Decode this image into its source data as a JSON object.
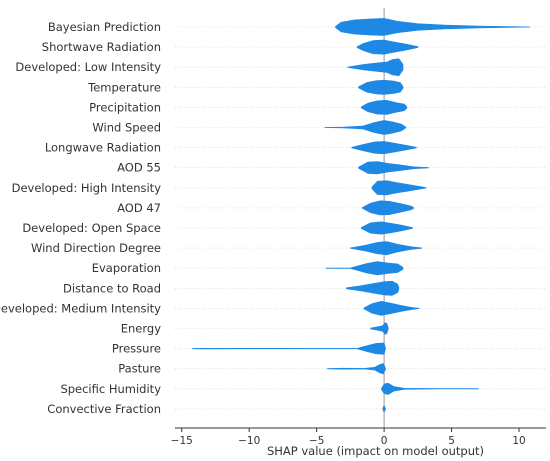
{
  "chart_data": {
    "type": "violin",
    "xlabel": "SHAP value (impact on model output)",
    "ylabel": "",
    "xlim": [
      -15.5,
      12
    ],
    "xticks": [
      -15,
      -10,
      -5,
      0,
      5,
      10
    ],
    "xtick_labels": [
      "−15",
      "−10",
      "−5",
      "0",
      "5",
      "10"
    ],
    "grid": false,
    "color": "#1e88e5",
    "features": [
      {
        "name": "Bayesian Prediction",
        "min": -3.6,
        "max": 10.8,
        "profile": [
          [
            -3.6,
            0.05
          ],
          [
            -3.2,
            0.5
          ],
          [
            -2.2,
            0.75
          ],
          [
            -1,
            0.85
          ],
          [
            0,
            0.9
          ],
          [
            1,
            0.6
          ],
          [
            2.5,
            0.35
          ],
          [
            4.5,
            0.2
          ],
          [
            7,
            0.1
          ],
          [
            9,
            0.05
          ],
          [
            10.8,
            0.01
          ]
        ]
      },
      {
        "name": "Shortwave Radiation",
        "min": -2.0,
        "max": 2.5,
        "profile": [
          [
            -2,
            0.05
          ],
          [
            -1.5,
            0.4
          ],
          [
            -0.8,
            0.7
          ],
          [
            0,
            0.75
          ],
          [
            0.7,
            0.55
          ],
          [
            1.5,
            0.35
          ],
          [
            2.5,
            0.05
          ]
        ]
      },
      {
        "name": "Developed: Low Intensity",
        "min": -2.7,
        "max": 1.4,
        "profile": [
          [
            -2.7,
            0.02
          ],
          [
            -1.5,
            0.3
          ],
          [
            -0.5,
            0.45
          ],
          [
            0.2,
            0.55
          ],
          [
            0.6,
            0.8
          ],
          [
            1.1,
            0.9
          ],
          [
            1.4,
            0.3
          ]
        ]
      },
      {
        "name": "Temperature",
        "min": -1.9,
        "max": 1.4,
        "profile": [
          [
            -1.9,
            0.05
          ],
          [
            -1.3,
            0.5
          ],
          [
            -0.6,
            0.7
          ],
          [
            0,
            0.75
          ],
          [
            0.7,
            0.65
          ],
          [
            1.2,
            0.5
          ],
          [
            1.4,
            0.1
          ]
        ]
      },
      {
        "name": "Precipitation",
        "min": -1.7,
        "max": 1.7,
        "profile": [
          [
            -1.7,
            0.05
          ],
          [
            -1.2,
            0.45
          ],
          [
            -0.5,
            0.7
          ],
          [
            0.2,
            0.75
          ],
          [
            0.9,
            0.5
          ],
          [
            1.5,
            0.35
          ],
          [
            1.7,
            0.05
          ]
        ]
      },
      {
        "name": "Wind Speed",
        "min": -4.4,
        "max": 1.6,
        "profile": [
          [
            -4.4,
            0.01
          ],
          [
            -3,
            0.05
          ],
          [
            -1.6,
            0.15
          ],
          [
            -0.8,
            0.5
          ],
          [
            0,
            0.75
          ],
          [
            0.6,
            0.6
          ],
          [
            1.3,
            0.35
          ],
          [
            1.6,
            0.05
          ]
        ]
      },
      {
        "name": "Longwave Radiation",
        "min": -2.4,
        "max": 2.4,
        "profile": [
          [
            -2.4,
            0.03
          ],
          [
            -1.5,
            0.35
          ],
          [
            -0.7,
            0.6
          ],
          [
            0,
            0.65
          ],
          [
            0.8,
            0.45
          ],
          [
            1.8,
            0.2
          ],
          [
            2.4,
            0.03
          ]
        ]
      },
      {
        "name": "AOD 55",
        "min": -1.9,
        "max": 3.3,
        "profile": [
          [
            -1.9,
            0.05
          ],
          [
            -1.2,
            0.6
          ],
          [
            -0.5,
            0.65
          ],
          [
            0.3,
            0.45
          ],
          [
            1.2,
            0.3
          ],
          [
            2.2,
            0.1
          ],
          [
            3.3,
            0.02
          ]
        ]
      },
      {
        "name": "Developed: High Intensity",
        "min": -0.9,
        "max": 3.1,
        "profile": [
          [
            -0.9,
            0.1
          ],
          [
            -0.5,
            0.7
          ],
          [
            0.2,
            0.75
          ],
          [
            0.9,
            0.55
          ],
          [
            1.8,
            0.35
          ],
          [
            2.6,
            0.15
          ],
          [
            3.1,
            0.03
          ]
        ]
      },
      {
        "name": "AOD 47",
        "min": -1.6,
        "max": 2.2,
        "profile": [
          [
            -1.6,
            0.05
          ],
          [
            -1,
            0.5
          ],
          [
            -0.3,
            0.75
          ],
          [
            0.4,
            0.7
          ],
          [
            1.2,
            0.45
          ],
          [
            2,
            0.2
          ],
          [
            2.2,
            0.03
          ]
        ]
      },
      {
        "name": "Developed: Open Space",
        "min": -1.7,
        "max": 2.1,
        "profile": [
          [
            -1.7,
            0.05
          ],
          [
            -1,
            0.55
          ],
          [
            -0.2,
            0.65
          ],
          [
            0.5,
            0.5
          ],
          [
            1.3,
            0.3
          ],
          [
            2.1,
            0.05
          ]
        ]
      },
      {
        "name": "Wind Direction Degree",
        "min": -2.5,
        "max": 2.8,
        "profile": [
          [
            -2.5,
            0.02
          ],
          [
            -1.4,
            0.3
          ],
          [
            -0.5,
            0.6
          ],
          [
            0.2,
            0.7
          ],
          [
            1,
            0.4
          ],
          [
            2,
            0.15
          ],
          [
            2.8,
            0.02
          ]
        ]
      },
      {
        "name": "Evaporation",
        "min": -4.3,
        "max": 1.4,
        "profile": [
          [
            -4.3,
            0.02
          ],
          [
            -2.5,
            0.03
          ],
          [
            -1.3,
            0.5
          ],
          [
            -0.5,
            0.7
          ],
          [
            0.3,
            0.55
          ],
          [
            1,
            0.45
          ],
          [
            1.4,
            0.1
          ]
        ]
      },
      {
        "name": "Distance to Road",
        "min": -2.8,
        "max": 1.1,
        "profile": [
          [
            -2.8,
            0.05
          ],
          [
            -1.8,
            0.25
          ],
          [
            -0.8,
            0.5
          ],
          [
            0,
            0.7
          ],
          [
            0.6,
            0.75
          ],
          [
            1,
            0.45
          ],
          [
            1.1,
            0.1
          ]
        ]
      },
      {
        "name": "Developed: Medium Intensity",
        "min": -1.5,
        "max": 2.6,
        "profile": [
          [
            -1.5,
            0.05
          ],
          [
            -0.9,
            0.5
          ],
          [
            -0.2,
            0.75
          ],
          [
            0.5,
            0.55
          ],
          [
            1.3,
            0.3
          ],
          [
            2.1,
            0.1
          ],
          [
            2.6,
            0.02
          ]
        ]
      },
      {
        "name": "Energy",
        "min": -1.0,
        "max": 0.3,
        "profile": [
          [
            -1,
            0.05
          ],
          [
            -0.4,
            0.2
          ],
          [
            -0.1,
            0.3
          ],
          [
            0.05,
            0.6
          ],
          [
            0.2,
            0.55
          ],
          [
            0.3,
            0.1
          ]
        ]
      },
      {
        "name": "Pressure",
        "min": -14.2,
        "max": 0.1,
        "profile": [
          [
            -14.2,
            0.02
          ],
          [
            -13.5,
            0.03
          ],
          [
            -2,
            0.02
          ],
          [
            -1.3,
            0.3
          ],
          [
            -0.6,
            0.55
          ],
          [
            0,
            0.6
          ],
          [
            0.1,
            0.05
          ]
        ]
      },
      {
        "name": "Pasture",
        "min": -4.2,
        "max": 0.1,
        "profile": [
          [
            -4.2,
            0.02
          ],
          [
            -3,
            0.05
          ],
          [
            -1.5,
            0.03
          ],
          [
            -0.7,
            0.15
          ],
          [
            -0.3,
            0.45
          ],
          [
            -0.05,
            0.55
          ],
          [
            0.1,
            0.05
          ]
        ]
      },
      {
        "name": "Specific Humidity",
        "min": -0.2,
        "max": 7.0,
        "profile": [
          [
            -0.2,
            0.05
          ],
          [
            0,
            0.5
          ],
          [
            0.3,
            0.6
          ],
          [
            0.7,
            0.25
          ],
          [
            1.5,
            0.05
          ],
          [
            4,
            0.02
          ],
          [
            7,
            0.02
          ]
        ]
      },
      {
        "name": "Convective Fraction",
        "min": -0.1,
        "max": 0.1,
        "profile": [
          [
            -0.1,
            0.05
          ],
          [
            -0.05,
            0.2
          ],
          [
            0,
            0.35
          ],
          [
            0.05,
            0.2
          ],
          [
            0.1,
            0.05
          ]
        ]
      }
    ]
  }
}
